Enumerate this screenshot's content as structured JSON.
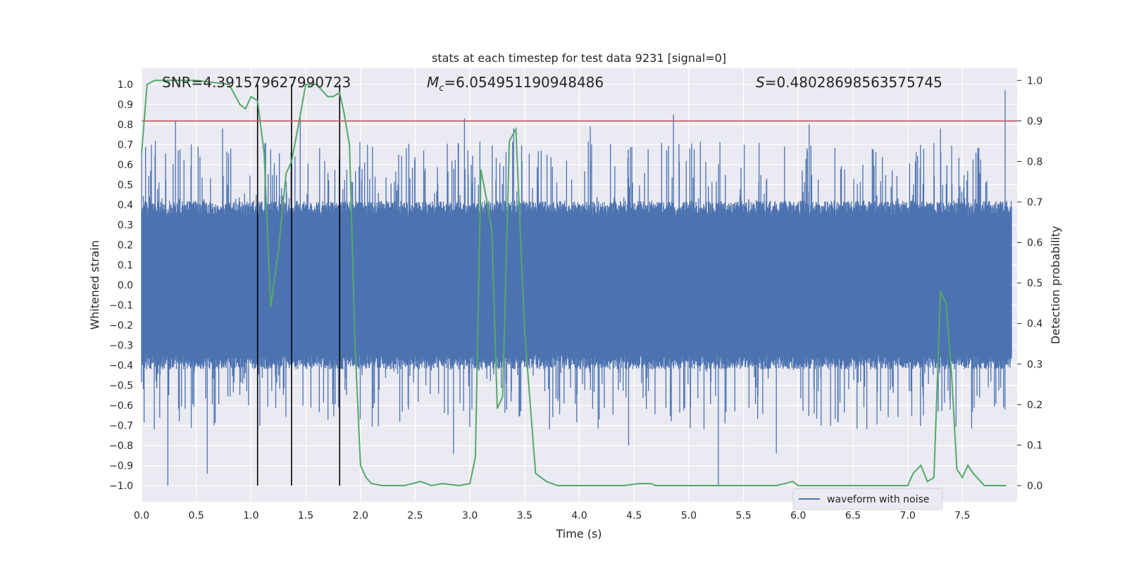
{
  "chart_data": {
    "type": "line",
    "title": "stats at each timestep for test data 9231 [signal=0]",
    "xlabel": "Time (s)",
    "ylabel_left": "Whitened strain",
    "ylabel_right": "Detection probability",
    "xlim": [
      0.0,
      8.0
    ],
    "ylim_left": [
      -1.08,
      1.08
    ],
    "ylim_right": [
      -0.04,
      1.03
    ],
    "x_ticks": [
      0.0,
      0.5,
      1.0,
      1.5,
      2.0,
      2.5,
      3.0,
      3.5,
      4.0,
      4.5,
      5.0,
      5.5,
      6.0,
      6.5,
      7.0,
      7.5
    ],
    "y_left_ticks": [
      1.0,
      0.9,
      0.8,
      0.7,
      0.6,
      0.5,
      0.4,
      0.3,
      0.2,
      0.1,
      0.0,
      -0.1,
      -0.2,
      -0.3,
      -0.4,
      -0.5,
      -0.6,
      -0.7,
      -0.8,
      -0.9,
      -1.0
    ],
    "y_right_ticks": [
      1.0,
      0.9,
      0.8,
      0.7,
      0.6,
      0.5,
      0.4,
      0.3,
      0.2,
      0.1,
      0.0
    ],
    "grid": true,
    "legend_position": "lower-right",
    "annotations": {
      "snr": "SNR=4.391579627990723",
      "mc_symbol": "M",
      "mc_sub": "c",
      "mc_value": "=6.054951190948486",
      "s_symbol": "S",
      "s_value": "=0.48028698563575745"
    },
    "threshold": {
      "axis": "right",
      "value": 0.9,
      "color": "#c44e52"
    },
    "vertical_lines": [
      1.06,
      1.37,
      1.81
    ],
    "series": [
      {
        "name": "waveform with noise",
        "axis": "left",
        "color": "#4c72b0",
        "kind": "noise",
        "envelope": {
          "typical_abs": 0.42,
          "max_abs": 1.0
        },
        "peaks": [
          {
            "x": 0.24,
            "y": -1.0
          },
          {
            "x": 0.31,
            "y": 0.82
          },
          {
            "x": 0.6,
            "y": -0.94
          },
          {
            "x": 0.74,
            "y": 0.78
          },
          {
            "x": 1.45,
            "y": 0.86
          },
          {
            "x": 2.85,
            "y": -0.84
          },
          {
            "x": 2.95,
            "y": 0.83
          },
          {
            "x": 3.4,
            "y": 0.78
          },
          {
            "x": 4.1,
            "y": 0.79
          },
          {
            "x": 4.45,
            "y": -0.8
          },
          {
            "x": 4.86,
            "y": 0.85
          },
          {
            "x": 5.27,
            "y": -1.0
          },
          {
            "x": 5.8,
            "y": -0.84
          },
          {
            "x": 6.1,
            "y": 0.8
          },
          {
            "x": 7.3,
            "y": 0.78
          },
          {
            "x": 7.89,
            "y": 0.97
          }
        ]
      },
      {
        "name": "",
        "axis": "right",
        "color": "#55a868",
        "x": [
          0.0,
          0.05,
          0.12,
          0.3,
          0.5,
          0.8,
          0.9,
          0.95,
          1.0,
          1.06,
          1.12,
          1.18,
          1.25,
          1.32,
          1.37,
          1.42,
          1.5,
          1.6,
          1.7,
          1.75,
          1.81,
          1.85,
          1.9,
          1.95,
          2.0,
          2.05,
          2.1,
          2.2,
          2.4,
          2.55,
          2.65,
          2.75,
          2.9,
          3.0,
          3.05,
          3.1,
          3.15,
          3.2,
          3.25,
          3.3,
          3.36,
          3.42,
          3.5,
          3.6,
          3.7,
          3.8,
          4.0,
          4.2,
          4.4,
          4.55,
          4.65,
          4.7,
          4.9,
          5.0,
          5.2,
          5.4,
          5.6,
          5.8,
          5.95,
          6.0,
          6.1,
          6.2,
          6.4,
          6.8,
          7.0,
          7.05,
          7.12,
          7.18,
          7.24,
          7.3,
          7.35,
          7.4,
          7.45,
          7.5,
          7.55,
          7.6,
          7.7,
          7.9
        ],
        "y": [
          0.82,
          0.99,
          1.0,
          1.0,
          1.0,
          0.99,
          0.94,
          0.93,
          0.96,
          0.95,
          0.82,
          0.44,
          0.58,
          0.77,
          0.8,
          0.87,
          0.99,
          0.99,
          0.96,
          0.96,
          0.97,
          0.92,
          0.84,
          0.35,
          0.05,
          0.02,
          0.005,
          0.0,
          0.0,
          0.01,
          0.0,
          0.005,
          0.0,
          0.005,
          0.07,
          0.78,
          0.71,
          0.63,
          0.19,
          0.22,
          0.85,
          0.88,
          0.38,
          0.03,
          0.01,
          0.0,
          0.0,
          0.0,
          0.0,
          0.005,
          0.005,
          0.0,
          0.0,
          0.0,
          0.0,
          0.0,
          0.0,
          0.0,
          0.01,
          0.0,
          0.0,
          0.0,
          0.0,
          0.0,
          0.0,
          0.03,
          0.05,
          0.01,
          0.02,
          0.48,
          0.45,
          0.28,
          0.04,
          0.02,
          0.05,
          0.03,
          0.0,
          0.0
        ]
      }
    ]
  }
}
